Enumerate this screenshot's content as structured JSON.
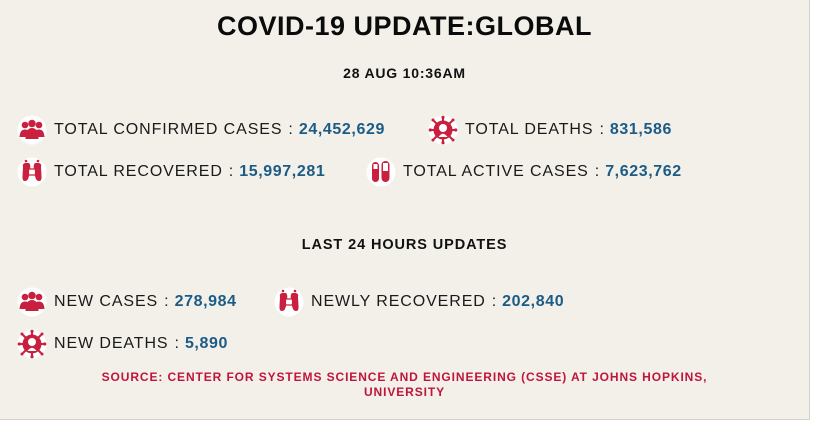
{
  "header": {
    "title": "COVID-19 UPDATE:GLOBAL",
    "timestamp": "28 AUG 10:36AM"
  },
  "totals": [
    {
      "icon": "people-group-icon",
      "label": "TOTAL CONFIRMED CASES",
      "value": "24,452,629"
    },
    {
      "icon": "virus-face-icon",
      "label": "TOTAL DEATHS",
      "value": "831,586"
    },
    {
      "icon": "footprints-icon",
      "label": "TOTAL RECOVERED",
      "value": "15,997,281"
    },
    {
      "icon": "test-tubes-icon",
      "label": "TOTAL ACTIVE CASES",
      "value": "7,623,762"
    }
  ],
  "last24": {
    "title": "LAST 24 HOURS UPDATES",
    "items": [
      {
        "icon": "people-group-icon",
        "label": "NEW CASES",
        "value": "278,984"
      },
      {
        "icon": "footprints-icon",
        "label": "NEWLY RECOVERED",
        "value": "202,840"
      },
      {
        "icon": "virus-face-icon",
        "label": "NEW DEATHS",
        "value": "5,890"
      }
    ]
  },
  "separator": ":",
  "source": {
    "line1": "SOURCE: CENTER FOR SYSTEMS SCIENCE AND ENGINEERING (CSSE) AT JOHNS HOPKINS,",
    "line2": "UNIVERSITY"
  },
  "colors": {
    "background": "#f2f0e9",
    "icon": "#c8203e",
    "value": "#1c5b86",
    "source": "#c0143c"
  }
}
